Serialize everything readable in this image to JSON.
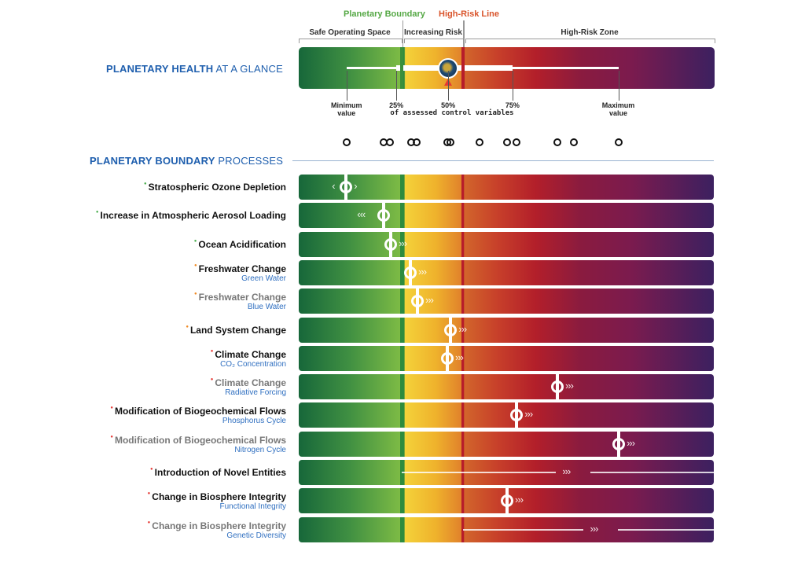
{
  "header": {
    "planetary_boundary_label": "Planetary Boundary",
    "high_risk_line_label": "High-Risk Line",
    "zones": [
      "Safe Operating Space",
      "Increasing Risk",
      "High-Risk Zone"
    ],
    "glance_title_bold": "PLANETARY HEALTH",
    "glance_title_rest": " AT A GLANCE",
    "scale_labels": {
      "min": "Minimum value",
      "p25": "25%",
      "p50": "50%",
      "p75": "75%",
      "max": "Maximum value",
      "caption": "of assessed control variables"
    },
    "colors": {
      "boundary": "#55a845",
      "high_risk": "#d9542b",
      "title_blue": "#1f5fae"
    }
  },
  "glance": {
    "scale_position_pct": {
      "min": 11.5,
      "p25": 23.5,
      "p50": 36.0,
      "p75": 51.5,
      "max": 77.0
    },
    "boundary_pct": 24.8,
    "high_risk_pct": 39.6,
    "distribution_dots_pct": [
      11.5,
      20.5,
      22.0,
      27.0,
      28.5,
      35.8,
      36.6,
      43.5,
      50.2,
      52.5,
      62.3,
      66.3,
      77.0
    ]
  },
  "processes_title_bold": "PLANETARY BOUNDARY",
  "processes_title_rest": " PROCESSES",
  "processes": [
    {
      "title": "Stratospheric Ozone Depletion",
      "subtitle": "",
      "status": "safe",
      "grey": false,
      "position_pct": 11.4,
      "trend": "‹ ›",
      "mode": "marker"
    },
    {
      "title": "Increase in Atmospheric Aerosol Loading",
      "subtitle": "",
      "status": "safe",
      "grey": false,
      "position_pct": 20.5,
      "trend": "‹‹‹",
      "mode": "marker"
    },
    {
      "title": "Ocean Acidification",
      "subtitle": "",
      "status": "safe",
      "grey": false,
      "position_pct": 22.2,
      "trend": "›››",
      "mode": "marker"
    },
    {
      "title": "Freshwater Change",
      "subtitle": "Green Water",
      "status": "increasing",
      "grey": false,
      "position_pct": 26.9,
      "trend": "›››",
      "mode": "marker"
    },
    {
      "title": "Freshwater Change",
      "subtitle": "Blue Water",
      "status": "increasing",
      "grey": true,
      "position_pct": 28.6,
      "trend": "›››",
      "mode": "marker"
    },
    {
      "title": "Land System Change",
      "subtitle": "",
      "status": "increasing",
      "grey": false,
      "position_pct": 36.6,
      "trend": "›››",
      "mode": "marker"
    },
    {
      "title": "Climate Change",
      "subtitle": "CO₂ Concentration",
      "status": "high",
      "grey": false,
      "position_pct": 35.8,
      "trend": "›››",
      "mode": "marker"
    },
    {
      "title": "Climate Change",
      "subtitle": "Radiative Forcing",
      "status": "high",
      "grey": true,
      "position_pct": 62.3,
      "trend": "›››",
      "mode": "marker"
    },
    {
      "title": "Modification of Biogeochemical Flows",
      "subtitle": "Phosphorus Cycle",
      "status": "high",
      "grey": false,
      "position_pct": 52.5,
      "trend": "›››",
      "mode": "marker"
    },
    {
      "title": "Modification of Biogeochemical Flows",
      "subtitle": "Nitrogen Cycle",
      "status": "high",
      "grey": true,
      "position_pct": 77.1,
      "trend": "›››",
      "mode": "marker"
    },
    {
      "title": "Introduction of Novel Entities",
      "subtitle": "",
      "status": "high",
      "grey": false,
      "position_pct": 24.8,
      "trend": "›››",
      "mode": "range"
    },
    {
      "title": "Change in Biosphere Integrity",
      "subtitle": "Functional Integrity",
      "status": "high",
      "grey": false,
      "position_pct": 50.2,
      "trend": "›››",
      "mode": "marker"
    },
    {
      "title": "Change in Biosphere Integrity",
      "subtitle": "Genetic Diversity",
      "status": "high",
      "grey": true,
      "position_pct": 39.6,
      "trend": "›››",
      "mode": "range"
    }
  ],
  "status_colors": {
    "safe": "#4caf50",
    "increasing": "#f08a24",
    "high": "#e53935"
  }
}
